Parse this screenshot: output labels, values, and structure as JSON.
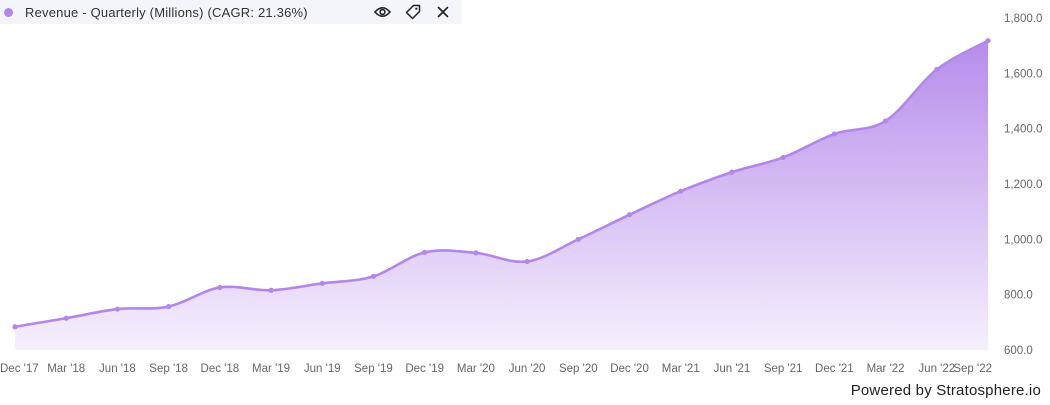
{
  "legend": {
    "label": "Revenue - Quarterly (Millions) (CAGR: 21.36%)",
    "color": "#b286ea",
    "actions": [
      "eye-icon",
      "tag-icon",
      "close-icon"
    ]
  },
  "footer": "Powered by Stratosphere.io",
  "chart_data": {
    "type": "area",
    "title": "",
    "xlabel": "",
    "ylabel": "",
    "ylim": [
      600,
      1800
    ],
    "yticks": [
      600,
      800,
      1000,
      1200,
      1400,
      1600,
      1800
    ],
    "ytick_labels": [
      "600.0",
      "800.0",
      "1,000.0",
      "1,200.0",
      "1,400.0",
      "1,600.0",
      "1,800.0"
    ],
    "y_axis_position": "right",
    "grid": false,
    "legend_position": "top-left",
    "line_color": "#b286ea",
    "fill_color_top": "#b68ceb",
    "fill_color_bottom": "#f6f0fd",
    "categories": [
      "Dec '17",
      "Mar '18",
      "Jun '18",
      "Sep '18",
      "Dec '18",
      "Mar '19",
      "Jun '19",
      "Sep '19",
      "Dec '19",
      "Mar '20",
      "Jun '20",
      "Sep '20",
      "Dec '20",
      "Mar '21",
      "Jun '21",
      "Sep '21",
      "Dec '21",
      "Mar '22",
      "Jun '22",
      "Sep '22"
    ],
    "series": [
      {
        "name": "Revenue - Quarterly (Millions)",
        "values": [
          684,
          715,
          748,
          757,
          826,
          816,
          841,
          866,
          953,
          951,
          920,
          1000,
          1089,
          1174,
          1243,
          1296,
          1381,
          1428,
          1614,
          1718
        ]
      }
    ]
  }
}
